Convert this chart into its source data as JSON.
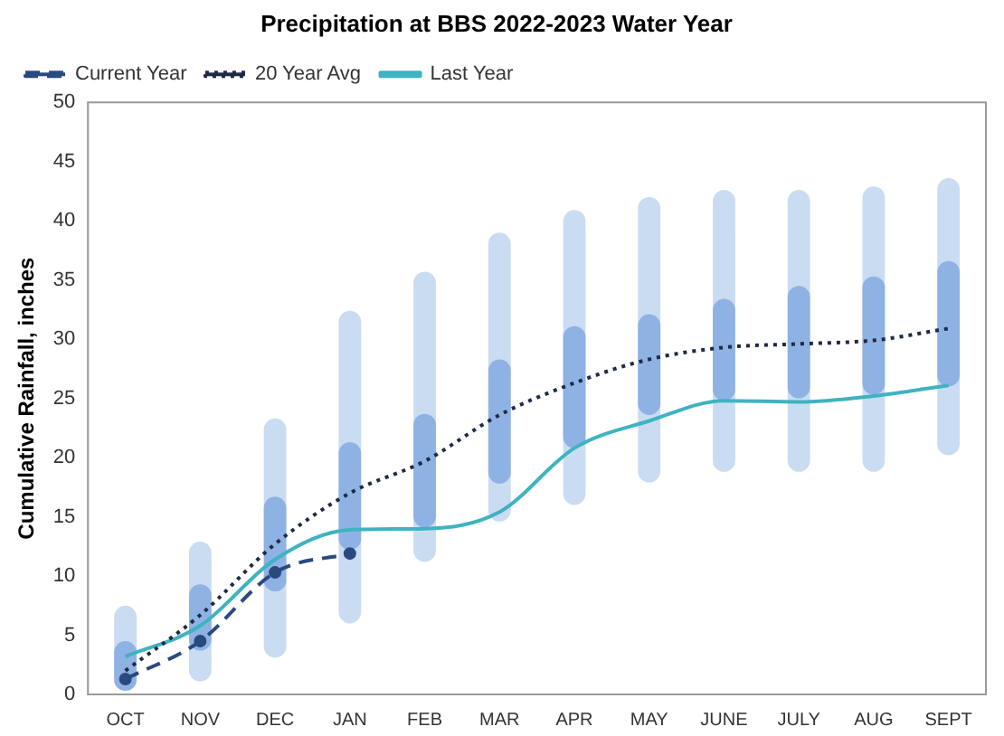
{
  "chart_data": {
    "type": "line",
    "title": "Precipitation at BBS 2022-2023 Water Year",
    "ylabel": "Cumulative Rainfall, inches",
    "categories": [
      "OCT",
      "NOV",
      "DEC",
      "JAN",
      "FEB",
      "MAR",
      "APR",
      "MAY",
      "JUNE",
      "JULY",
      "AUG",
      "SEPT"
    ],
    "ylim": [
      0,
      50
    ],
    "yticks": [
      0,
      5,
      10,
      15,
      20,
      25,
      30,
      35,
      40,
      45,
      50
    ],
    "grid": false,
    "legend": "top left",
    "series": [
      {
        "type": "bar",
        "color": "#cadcf2",
        "base": [
          0.3,
          1.1,
          3.1,
          6.0,
          11.2,
          14.6,
          16.0,
          17.9,
          18.8,
          18.8,
          18.8,
          20.2
        ],
        "values": [
          7.2,
          11.8,
          20.2,
          26.4,
          24.5,
          24.4,
          24.9,
          24.1,
          23.8,
          23.8,
          24.1,
          23.4
        ]
      },
      {
        "type": "bar",
        "color": "#8fb2e4",
        "base": [
          0.3,
          3.7,
          8.7,
          12.2,
          14.1,
          17.8,
          20.8,
          23.6,
          24.8,
          25.0,
          25.3,
          26.0
        ],
        "values": [
          4.2,
          5.6,
          8.0,
          9.1,
          9.6,
          10.5,
          10.3,
          8.5,
          8.6,
          9.5,
          10.0,
          10.6
        ]
      },
      {
        "name": "Current Year",
        "color": "#2a4a7f",
        "line_style": "dashed",
        "marker": "circle",
        "values": [
          1.3,
          4.5,
          10.3,
          11.9,
          null,
          null,
          null,
          null,
          null,
          null,
          null,
          null
        ]
      },
      {
        "name": "20 Year Avg",
        "color": "#1f2a44",
        "line_style": "dotted",
        "marker": "none",
        "values": [
          2.0,
          6.7,
          12.7,
          17.0,
          19.7,
          23.6,
          26.3,
          28.3,
          29.3,
          29.6,
          29.9,
          30.9
        ]
      },
      {
        "name": "Last Year",
        "color": "#3fb3c0",
        "line_style": "solid",
        "marker": "none",
        "values": [
          3.2,
          5.8,
          11.4,
          13.9,
          14.0,
          15.4,
          20.8,
          23.1,
          24.8,
          24.7,
          25.2,
          26.1
        ]
      }
    ]
  }
}
